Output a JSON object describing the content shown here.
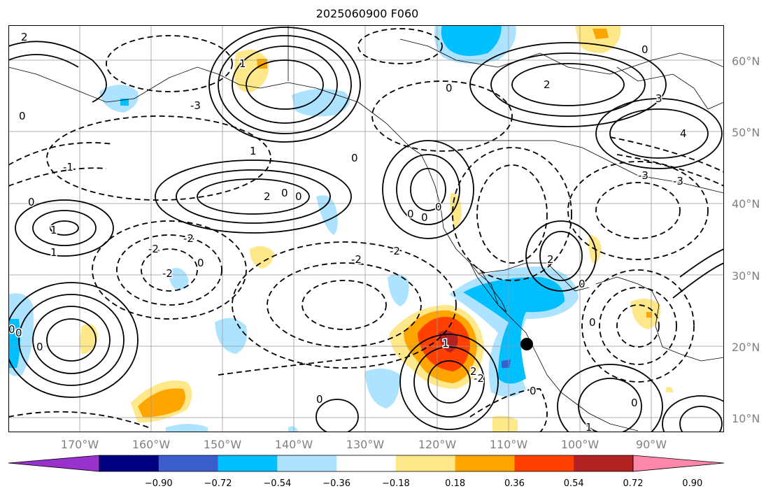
{
  "title": "2025060900 F060",
  "lat_labels": [
    "60°N",
    "50°N",
    "40°N",
    "30°N",
    "20°N",
    "10°N"
  ],
  "lon_labels": [
    "170°W",
    "160°W",
    "150°W",
    "140°W",
    "130°W",
    "120°W",
    "110°W",
    "100°W",
    "90°W"
  ],
  "contour_labels": [
    "2",
    "1",
    "0",
    "-1",
    "-2",
    "-3",
    "3",
    "4"
  ],
  "colorbar": {
    "colors": [
      "#9932cc",
      "#000080",
      "#3a5fcd",
      "#00bfff",
      "#aee3ff",
      "#ffffff",
      "#ffe88a",
      "#ffa500",
      "#ff4000",
      "#b22222",
      "#ff88aa"
    ],
    "tick_labels": [
      "−0.90",
      "−0.72",
      "−0.54",
      "−0.36",
      "−0.18",
      "0.18",
      "0.36",
      "0.54",
      "0.72",
      "0.90"
    ]
  },
  "colors": {
    "contour": "#000000",
    "grid": "#999999",
    "coast": "#000000",
    "marker": "#000000"
  }
}
